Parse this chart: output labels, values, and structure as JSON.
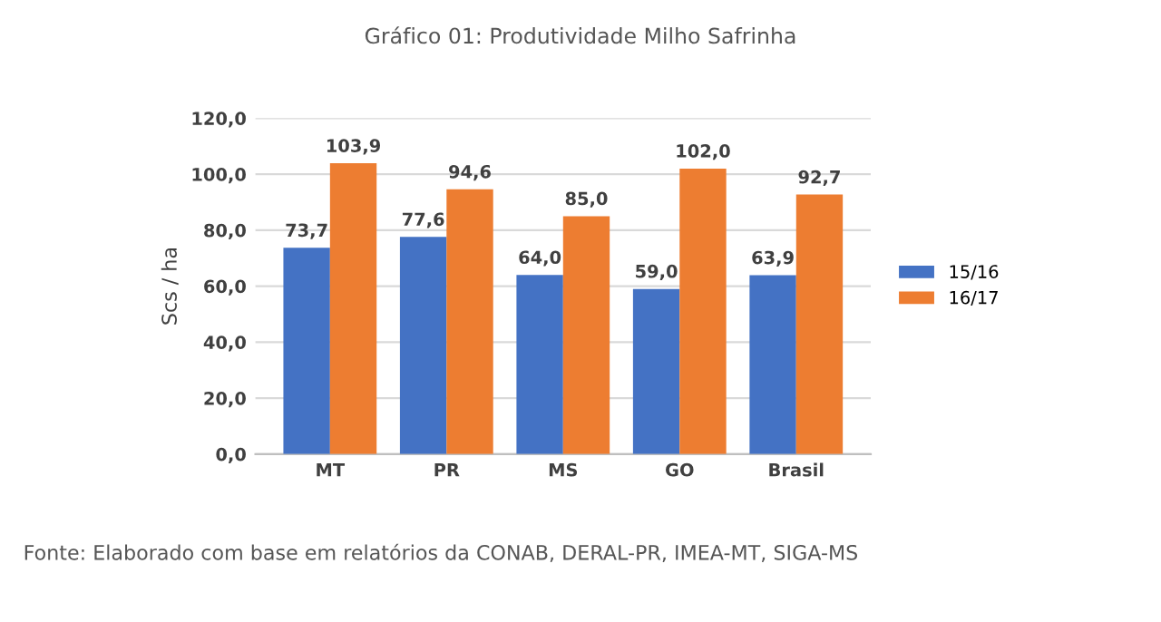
{
  "chart_data": {
    "type": "bar",
    "title": "Gráfico 01: Produtividade Milho Safrinha",
    "ylabel": "Scs / ha",
    "categories": [
      "MT",
      "PR",
      "MS",
      "GO",
      "Brasil"
    ],
    "series": [
      {
        "name": "15/16",
        "color": "#4472c4",
        "values": [
          73.7,
          77.6,
          64.0,
          59.0,
          63.9
        ],
        "value_labels": [
          "73,7",
          "77,6",
          "64,0",
          "59,0",
          "63,9"
        ]
      },
      {
        "name": "16/17",
        "color": "#ed7d31",
        "values": [
          103.9,
          94.6,
          85.0,
          102.0,
          92.7
        ],
        "value_labels": [
          "103,9",
          "94,6",
          "85,0",
          "102,0",
          "92,7"
        ]
      }
    ],
    "ylim": [
      0,
      120
    ],
    "yticks": [
      {
        "value": 0,
        "label": "0,0"
      },
      {
        "value": 20,
        "label": "20,0"
      },
      {
        "value": 40,
        "label": "40,0"
      },
      {
        "value": 60,
        "label": "60,0"
      },
      {
        "value": 80,
        "label": "80,0"
      },
      {
        "value": 100,
        "label": "100,0"
      },
      {
        "value": 120,
        "label": "120,0"
      }
    ],
    "grid": "y",
    "legend": "right",
    "annotations": [
      "Fonte: Elaborado com base em relatórios da CONAB, DERAL-PR, IMEA-MT, SIGA-MS"
    ]
  }
}
